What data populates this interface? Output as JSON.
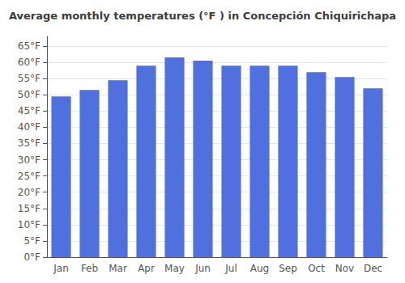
{
  "chart_data": {
    "type": "bar",
    "title": "Average monthly temperatures (°F ) in Concepción Chiquirichapa",
    "categories": [
      "Jan",
      "Feb",
      "Mar",
      "Apr",
      "May",
      "Jun",
      "Jul",
      "Aug",
      "Sep",
      "Oct",
      "Nov",
      "Dec"
    ],
    "values": [
      49.5,
      51.5,
      54.5,
      59.0,
      61.5,
      60.5,
      59.0,
      59.0,
      59.0,
      57.0,
      55.5,
      52.0
    ],
    "ylim": [
      0,
      68
    ],
    "yticks": [
      {
        "value": 0,
        "label": "0°F"
      },
      {
        "value": 5,
        "label": "5°F"
      },
      {
        "value": 10,
        "label": "10°F"
      },
      {
        "value": 15,
        "label": "15°F"
      },
      {
        "value": 20,
        "label": "20°F"
      },
      {
        "value": 25,
        "label": "25°F"
      },
      {
        "value": 30,
        "label": "30°F"
      },
      {
        "value": 35,
        "label": "35°F"
      },
      {
        "value": 40,
        "label": "40°F"
      },
      {
        "value": 45,
        "label": "45°F"
      },
      {
        "value": 50,
        "label": "50°F"
      },
      {
        "value": 55,
        "label": "55°F"
      },
      {
        "value": 60,
        "label": "60°F"
      },
      {
        "value": 65,
        "label": "65°F"
      }
    ],
    "grid": true
  }
}
